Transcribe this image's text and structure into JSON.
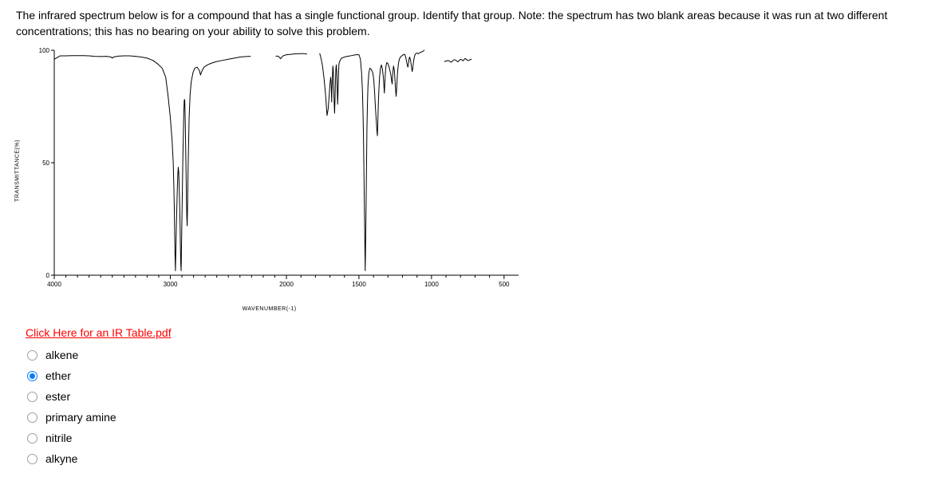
{
  "question": {
    "text": "The infrared spectrum below is for a compound that has a single functional group.  Identify that group.  Note:  the spectrum has two blank areas because it was run at two different concentrations; this has no bearing on your ability to solve this problem."
  },
  "chart": {
    "type": "line",
    "ylabel": "TRANSMITTANCE(%)",
    "xlabel": "WAVENUMBER(-1)",
    "xlim": [
      4000,
      400
    ],
    "ylim": [
      0,
      100
    ],
    "yticks": [
      0,
      50,
      100
    ],
    "xticks": [
      4000,
      3000,
      2000,
      1500,
      1000,
      500
    ],
    "line_color": "#000000",
    "line_width": 1,
    "background_color": "#ffffff",
    "axis_color": "#000000",
    "segment_a": [
      [
        4000,
        96
      ],
      [
        3950,
        97.5
      ],
      [
        3900,
        97.5
      ],
      [
        3850,
        97.6
      ],
      [
        3800,
        97.6
      ],
      [
        3750,
        97.6
      ],
      [
        3700,
        97.5
      ],
      [
        3650,
        97.3
      ],
      [
        3600,
        97.2
      ],
      [
        3550,
        97.3
      ],
      [
        3510,
        97.0
      ],
      [
        3500,
        96.5
      ],
      [
        3490,
        97.0
      ],
      [
        3450,
        97.4
      ],
      [
        3400,
        97.5
      ],
      [
        3350,
        97.5
      ],
      [
        3300,
        97.3
      ],
      [
        3250,
        97.0
      ],
      [
        3200,
        96.5
      ],
      [
        3150,
        95.5
      ],
      [
        3110,
        94.0
      ],
      [
        3070,
        92.0
      ],
      [
        3040,
        88.0
      ],
      [
        3020,
        80.0
      ],
      [
        3000,
        70.0
      ],
      [
        2985,
        60.0
      ],
      [
        2975,
        50.0
      ],
      [
        2970,
        40.0
      ],
      [
        2966,
        30.0
      ],
      [
        2963,
        20.0
      ],
      [
        2960,
        10.0
      ],
      [
        2956,
        2.0
      ],
      [
        2952,
        12.0
      ],
      [
        2948,
        22.0
      ],
      [
        2944,
        30.0
      ],
      [
        2940,
        38.0
      ],
      [
        2936,
        44.0
      ],
      [
        2932,
        48.0
      ],
      [
        2928,
        46.0
      ],
      [
        2924,
        40.0
      ],
      [
        2920,
        32.0
      ],
      [
        2916,
        22.0
      ],
      [
        2913,
        12.0
      ],
      [
        2910,
        5.0
      ],
      [
        2907,
        2.0
      ],
      [
        2904,
        12.0
      ],
      [
        2901,
        22.0
      ],
      [
        2898,
        32.0
      ],
      [
        2895,
        42.0
      ],
      [
        2892,
        52.0
      ],
      [
        2888,
        62.0
      ],
      [
        2884,
        72.0
      ],
      [
        2880,
        78.0
      ],
      [
        2876,
        78.0
      ],
      [
        2873,
        72.0
      ],
      [
        2870,
        64.0
      ],
      [
        2867,
        54.0
      ],
      [
        2864,
        44.0
      ],
      [
        2861,
        34.0
      ],
      [
        2858,
        26.0
      ],
      [
        2855,
        22.0
      ],
      [
        2852,
        30.0
      ],
      [
        2849,
        40.0
      ],
      [
        2846,
        50.0
      ],
      [
        2842,
        60.0
      ],
      [
        2838,
        70.0
      ],
      [
        2830,
        80.0
      ],
      [
        2820,
        86.0
      ],
      [
        2805,
        90.0
      ],
      [
        2790,
        92.0
      ],
      [
        2770,
        92.5
      ],
      [
        2750,
        91.0
      ],
      [
        2740,
        89.0
      ],
      [
        2730,
        90.5
      ],
      [
        2710,
        92.5
      ],
      [
        2680,
        93.5
      ],
      [
        2650,
        94.2
      ],
      [
        2600,
        95.0
      ],
      [
        2550,
        95.5
      ],
      [
        2500,
        96.0
      ],
      [
        2450,
        96.5
      ],
      [
        2400,
        97.0
      ],
      [
        2350,
        97.2
      ],
      [
        2310,
        97.3
      ]
    ],
    "segment_b": [
      [
        2090,
        97.4
      ],
      [
        2070,
        97.4
      ],
      [
        2060,
        96.8
      ],
      [
        2050,
        96.2
      ],
      [
        2042,
        96.8
      ],
      [
        2030,
        97.5
      ],
      [
        2000,
        98.0
      ],
      [
        1970,
        98.2
      ],
      [
        1940,
        98.4
      ],
      [
        1910,
        98.5
      ],
      [
        1880,
        98.5
      ],
      [
        1860,
        98.3
      ]
    ],
    "segment_c": [
      [
        1770,
        98.5
      ],
      [
        1760,
        96.0
      ],
      [
        1750,
        92.5
      ],
      [
        1740,
        87.0
      ],
      [
        1730,
        80.0
      ],
      [
        1720,
        71.0
      ],
      [
        1712,
        74.0
      ],
      [
        1705,
        80.0
      ],
      [
        1700,
        85.0
      ],
      [
        1695,
        88.0
      ],
      [
        1692,
        86.0
      ],
      [
        1690,
        82.0
      ],
      [
        1688,
        77.0
      ],
      [
        1686,
        82.0
      ],
      [
        1683,
        88.0
      ],
      [
        1680,
        93.0
      ],
      [
        1677,
        91.0
      ],
      [
        1674,
        84.0
      ],
      [
        1671,
        77.0
      ],
      [
        1668,
        72.0
      ],
      [
        1665,
        78.0
      ],
      [
        1662,
        86.0
      ],
      [
        1659,
        92.0
      ],
      [
        1656,
        93.5
      ],
      [
        1653,
        90.0
      ],
      [
        1650,
        83.0
      ],
      [
        1647,
        76.0
      ],
      [
        1644,
        82.0
      ],
      [
        1641,
        89.0
      ],
      [
        1638,
        94.0
      ],
      [
        1630,
        95.5
      ],
      [
        1620,
        96.5
      ],
      [
        1600,
        97.0
      ],
      [
        1580,
        97.3
      ],
      [
        1560,
        97.5
      ],
      [
        1540,
        97.8
      ],
      [
        1520,
        98.0
      ],
      [
        1500,
        98.0
      ],
      [
        1490,
        96.0
      ],
      [
        1482,
        90.0
      ],
      [
        1476,
        82.0
      ],
      [
        1472,
        72.0
      ],
      [
        1469,
        62.0
      ],
      [
        1467,
        52.0
      ],
      [
        1465,
        42.0
      ],
      [
        1463,
        32.0
      ],
      [
        1461,
        22.0
      ],
      [
        1459,
        12.0
      ],
      [
        1457,
        2.0
      ],
      [
        1455,
        10.0
      ],
      [
        1453,
        20.0
      ],
      [
        1451,
        30.0
      ],
      [
        1449,
        42.0
      ],
      [
        1447,
        54.0
      ],
      [
        1445,
        65.0
      ],
      [
        1442,
        75.0
      ],
      [
        1438,
        84.0
      ],
      [
        1432,
        90.0
      ],
      [
        1425,
        92.0
      ],
      [
        1415,
        91.5
      ],
      [
        1405,
        90.0
      ],
      [
        1398,
        87.0
      ],
      [
        1392,
        81.0
      ],
      [
        1386,
        74.0
      ],
      [
        1380,
        68.0
      ],
      [
        1376,
        64.0
      ],
      [
        1373,
        62.0
      ],
      [
        1370,
        68.0
      ],
      [
        1367,
        75.0
      ],
      [
        1363,
        82.0
      ],
      [
        1358,
        88.0
      ],
      [
        1352,
        92.0
      ],
      [
        1345,
        93.5
      ],
      [
        1338,
        91.5
      ],
      [
        1332,
        88.0
      ],
      [
        1328,
        84.0
      ],
      [
        1325,
        81.0
      ],
      [
        1322,
        85.0
      ],
      [
        1318,
        90.0
      ],
      [
        1314,
        93.0
      ],
      [
        1308,
        94.5
      ],
      [
        1300,
        94.0
      ],
      [
        1290,
        92.0
      ],
      [
        1280,
        89.0
      ],
      [
        1274,
        86.0
      ],
      [
        1271,
        85.0
      ],
      [
        1268,
        89.0
      ],
      [
        1262,
        93.0
      ],
      [
        1256,
        91.0
      ],
      [
        1251,
        86.0
      ],
      [
        1247,
        82.0
      ],
      [
        1244,
        79.5
      ],
      [
        1241,
        82.0
      ],
      [
        1237,
        87.0
      ],
      [
        1233,
        91.0
      ],
      [
        1228,
        94.0
      ],
      [
        1222,
        96.0
      ],
      [
        1214,
        97.0
      ],
      [
        1205,
        97.5
      ],
      [
        1195,
        98.0
      ],
      [
        1185,
        98.2
      ],
      [
        1178,
        97.0
      ],
      [
        1172,
        95.0
      ],
      [
        1167,
        93.5
      ],
      [
        1163,
        92.5
      ],
      [
        1159,
        94.0
      ],
      [
        1155,
        96.0
      ],
      [
        1151,
        97.0
      ],
      [
        1146,
        96.0
      ],
      [
        1141,
        94.0
      ],
      [
        1137,
        92.0
      ],
      [
        1133,
        90.5
      ],
      [
        1129,
        92.0
      ],
      [
        1125,
        94.5
      ],
      [
        1120,
        96.5
      ],
      [
        1114,
        98.0
      ],
      [
        1108,
        98.5
      ],
      [
        1100,
        98.8
      ],
      [
        1090,
        98.4
      ],
      [
        1080,
        99.0
      ],
      [
        1070,
        99.2
      ],
      [
        1060,
        99.5
      ],
      [
        1050,
        100.0
      ]
    ],
    "segment_d": [
      [
        910,
        95.0
      ],
      [
        900,
        95.2
      ],
      [
        890,
        95.4
      ],
      [
        880,
        95.3
      ],
      [
        872,
        95.0
      ],
      [
        866,
        94.7
      ],
      [
        862,
        94.8
      ],
      [
        856,
        95.2
      ],
      [
        850,
        95.6
      ],
      [
        842,
        95.8
      ],
      [
        834,
        95.6
      ],
      [
        826,
        95.2
      ],
      [
        820,
        94.9
      ],
      [
        815,
        95.0
      ],
      [
        810,
        95.4
      ],
      [
        804,
        95.8
      ],
      [
        798,
        96.0
      ],
      [
        792,
        95.8
      ],
      [
        787,
        95.5
      ],
      [
        783,
        95.3
      ],
      [
        779,
        95.6
      ],
      [
        774,
        96.0
      ],
      [
        768,
        96.3
      ],
      [
        762,
        96.1
      ],
      [
        756,
        95.7
      ],
      [
        748,
        95.4
      ],
      [
        740,
        95.6
      ],
      [
        732,
        95.9
      ],
      [
        725,
        96.0
      ]
    ]
  },
  "link": {
    "label": "Click Here for an IR Table.pdf"
  },
  "options": [
    {
      "label": "alkene",
      "selected": false
    },
    {
      "label": "ether",
      "selected": true
    },
    {
      "label": "ester",
      "selected": false
    },
    {
      "label": "primary amine",
      "selected": false
    },
    {
      "label": "nitrile",
      "selected": false
    },
    {
      "label": "alkyne",
      "selected": false
    }
  ],
  "colors": {
    "link_color": "#ff0000",
    "radio_border": "#9aa0a6",
    "radio_selected": "#0a7bff",
    "text": "#000000",
    "background": "#ffffff"
  }
}
